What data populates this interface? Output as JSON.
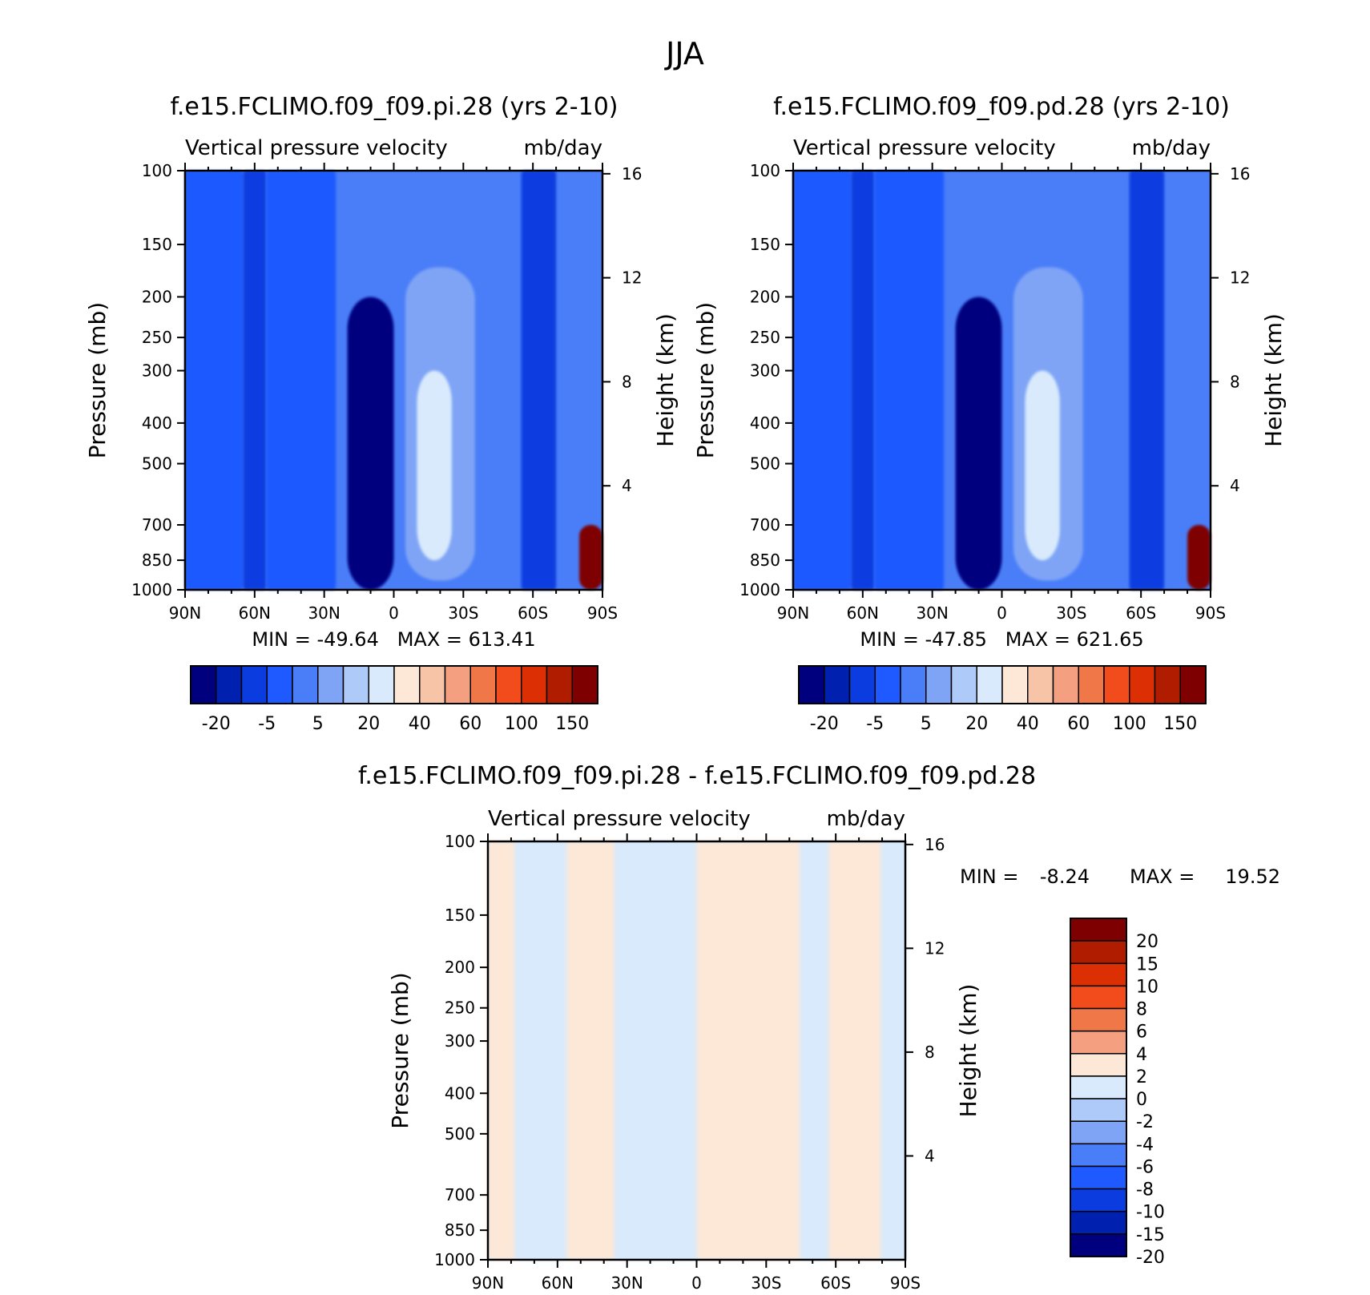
{
  "figure_title": "JJA",
  "colors": {
    "top_scale": [
      "#00007f",
      "#0020b0",
      "#0a3ce0",
      "#1e5aff",
      "#4a7ef8",
      "#7fa4f6",
      "#aecaf8",
      "#d8eafc",
      "#fde8d8",
      "#f8c4a8",
      "#f4a080",
      "#f07848",
      "#f24c1c",
      "#dc3004",
      "#b01c00",
      "#7f0000"
    ],
    "diff_scale": [
      "#7f0000",
      "#b01c00",
      "#dc3004",
      "#f24c1c",
      "#f07848",
      "#f4a080",
      "#fde8d8",
      "#d8eafc",
      "#aecaf8",
      "#7fa4f6",
      "#4a7ef8",
      "#1e5aff",
      "#0a3ce0",
      "#0020b0",
      "#00007f"
    ]
  },
  "chart_data": [
    {
      "id": "panel_pi",
      "type": "heatmap",
      "title": "f.e15.FCLIMO.f09_f09.pi.28 (yrs 2-10)",
      "subtitle_left": "Vertical pressure velocity",
      "subtitle_right": "mb/day",
      "ylabel": "Pressure (mb)",
      "ylabel_right": "Height (km)",
      "x_ticks": [
        "90N",
        "60N",
        "30N",
        "0",
        "30S",
        "60S",
        "90S"
      ],
      "x_lim": [
        90,
        -90
      ],
      "y_ticks": [
        100,
        150,
        200,
        250,
        300,
        400,
        500,
        700,
        850,
        1000
      ],
      "y_lim": [
        1000,
        100
      ],
      "y_scale": "log",
      "y_right_ticks": [
        16,
        12,
        8,
        4
      ],
      "stats": "MIN = -49.64   MAX = 613.41",
      "colorbar_labels": [
        "-20",
        "-5",
        "5",
        "20",
        "40",
        "60",
        "100",
        "150"
      ],
      "colorbar_orientation": "horizontal",
      "field": [
        {
          "lat_range": [
            90,
            65
          ],
          "level": "-5"
        },
        {
          "lat_range": [
            65,
            55
          ],
          "level": "-10"
        },
        {
          "lat_range": [
            55,
            25
          ],
          "level": "-5"
        },
        {
          "lat_range": [
            20,
            0
          ],
          "level": "-20",
          "pressure_range": [
            1000,
            200
          ]
        },
        {
          "lat_range": [
            -5,
            -35
          ],
          "level": "5",
          "pressure_range": [
            950,
            170
          ]
        },
        {
          "lat_range": [
            -10,
            -25
          ],
          "level": "20",
          "pressure_range": [
            850,
            300
          ]
        },
        {
          "lat_range": [
            -55,
            -70
          ],
          "level": "-10"
        },
        {
          "lat_range": [
            -80,
            -90
          ],
          "level": "150",
          "pressure_range": [
            1000,
            700
          ]
        }
      ]
    },
    {
      "id": "panel_pd",
      "type": "heatmap",
      "title": "f.e15.FCLIMO.f09_f09.pd.28 (yrs 2-10)",
      "subtitle_left": "Vertical pressure velocity",
      "subtitle_right": "mb/day",
      "ylabel": "Pressure (mb)",
      "ylabel_right": "Height (km)",
      "x_ticks": [
        "90N",
        "60N",
        "30N",
        "0",
        "30S",
        "60S",
        "90S"
      ],
      "x_lim": [
        90,
        -90
      ],
      "y_ticks": [
        100,
        150,
        200,
        250,
        300,
        400,
        500,
        700,
        850,
        1000
      ],
      "y_lim": [
        1000,
        100
      ],
      "y_scale": "log",
      "y_right_ticks": [
        16,
        12,
        8,
        4
      ],
      "stats": "MIN = -47.85   MAX = 621.65",
      "colorbar_labels": [
        "-20",
        "-5",
        "5",
        "20",
        "40",
        "60",
        "100",
        "150"
      ],
      "colorbar_orientation": "horizontal",
      "field": [
        {
          "lat_range": [
            90,
            65
          ],
          "level": "-5"
        },
        {
          "lat_range": [
            65,
            55
          ],
          "level": "-10"
        },
        {
          "lat_range": [
            55,
            25
          ],
          "level": "-5"
        },
        {
          "lat_range": [
            20,
            0
          ],
          "level": "-20",
          "pressure_range": [
            1000,
            200
          ]
        },
        {
          "lat_range": [
            -5,
            -35
          ],
          "level": "5",
          "pressure_range": [
            950,
            170
          ]
        },
        {
          "lat_range": [
            -10,
            -25
          ],
          "level": "20",
          "pressure_range": [
            850,
            300
          ]
        },
        {
          "lat_range": [
            -55,
            -70
          ],
          "level": "-10"
        },
        {
          "lat_range": [
            -80,
            -90
          ],
          "level": "150",
          "pressure_range": [
            1000,
            700
          ]
        }
      ]
    },
    {
      "id": "panel_diff",
      "type": "heatmap",
      "title": "f.e15.FCLIMO.f09_f09.pi.28 - f.e15.FCLIMO.f09_f09.pd.28",
      "subtitle_left": "Vertical pressure velocity",
      "subtitle_right": "mb/day",
      "ylabel": "Pressure (mb)",
      "ylabel_right": "Height (km)",
      "x_ticks": [
        "90N",
        "60N",
        "30N",
        "0",
        "30S",
        "60S",
        "90S"
      ],
      "x_lim": [
        90,
        -90
      ],
      "y_ticks": [
        100,
        150,
        200,
        250,
        300,
        400,
        500,
        700,
        850,
        1000
      ],
      "y_lim": [
        1000,
        100
      ],
      "y_scale": "log",
      "y_right_ticks": [
        16,
        12,
        8,
        4
      ],
      "stats_min_label": "MIN =",
      "stats_min": "-8.24",
      "stats_max_label": "MAX =",
      "stats_max": "19.52",
      "colorbar_labels": [
        "20",
        "15",
        "10",
        "8",
        "6",
        "4",
        "2",
        "0",
        "-2",
        "-4",
        "-6",
        "-8",
        "-10",
        "-15",
        "-20"
      ],
      "colorbar_orientation": "vertical",
      "field": [
        {
          "lat_range": [
            90,
            78
          ],
          "level": "2"
        },
        {
          "lat_range": [
            78,
            56
          ],
          "level": "-2"
        },
        {
          "lat_range": [
            56,
            35
          ],
          "level": "2"
        },
        {
          "lat_range": [
            35,
            0
          ],
          "level": "-2"
        },
        {
          "lat_range": [
            0,
            -45
          ],
          "level": "2"
        },
        {
          "lat_range": [
            -45,
            -57
          ],
          "level": "-2"
        },
        {
          "lat_range": [
            -57,
            -80
          ],
          "level": "2"
        },
        {
          "lat_range": [
            -80,
            -90
          ],
          "level": "-2"
        }
      ]
    }
  ]
}
